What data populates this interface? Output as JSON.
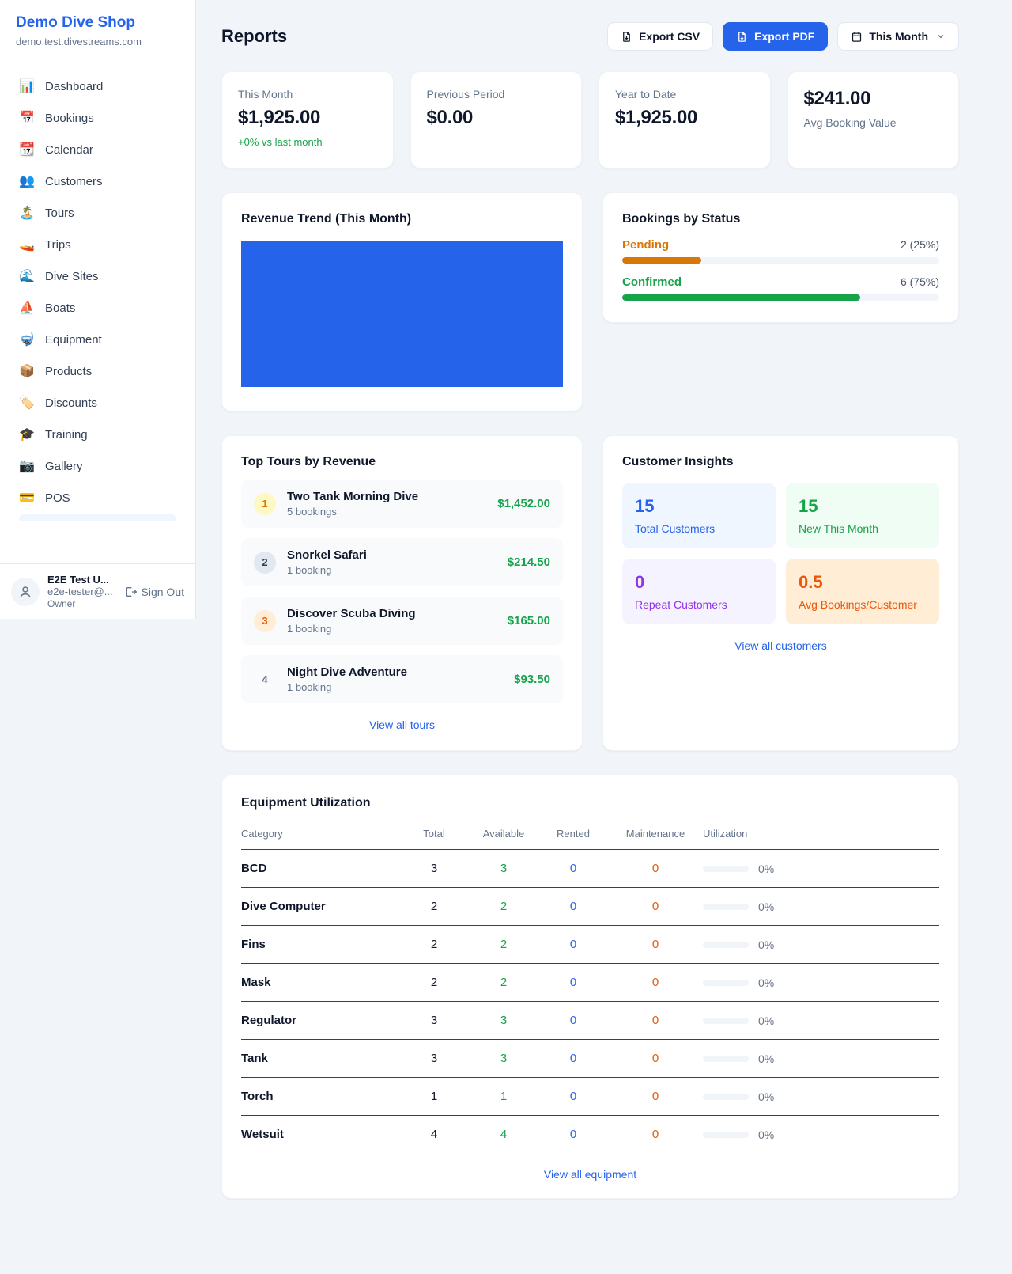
{
  "sidebar": {
    "shop_name": "Demo Dive Shop",
    "shop_domain": "demo.test.divestreams.com",
    "items": [
      {
        "icon": "📊",
        "label": "Dashboard"
      },
      {
        "icon": "📅",
        "label": "Bookings"
      },
      {
        "icon": "📆",
        "label": "Calendar"
      },
      {
        "icon": "👥",
        "label": "Customers"
      },
      {
        "icon": "🏝️",
        "label": "Tours"
      },
      {
        "icon": "🚤",
        "label": "Trips"
      },
      {
        "icon": "🌊",
        "label": "Dive Sites"
      },
      {
        "icon": "⛵",
        "label": "Boats"
      },
      {
        "icon": "🤿",
        "label": "Equipment"
      },
      {
        "icon": "📦",
        "label": "Products"
      },
      {
        "icon": "🏷️",
        "label": "Discounts"
      },
      {
        "icon": "🎓",
        "label": "Training"
      },
      {
        "icon": "📷",
        "label": "Gallery"
      },
      {
        "icon": "💳",
        "label": "POS"
      }
    ],
    "user": {
      "name": "E2E Test U...",
      "email": "e2e-tester@...",
      "role": "Owner",
      "sign_out": "Sign Out"
    }
  },
  "header": {
    "title": "Reports",
    "export_csv": "Export CSV",
    "export_pdf": "Export PDF",
    "period": "This Month"
  },
  "stats": [
    {
      "label": "This Month",
      "value": "$1,925.00",
      "delta": "+0% vs last month"
    },
    {
      "label": "Previous Period",
      "value": "$0.00"
    },
    {
      "label": "Year to Date",
      "value": "$1,925.00"
    },
    {
      "label": "Avg Booking Value",
      "value": "$241.00"
    }
  ],
  "revenue_trend": {
    "title": "Revenue Trend (This Month)",
    "bar_color": "#2563eb"
  },
  "chart_data": [
    {
      "type": "bar",
      "title": "Revenue Trend (This Month)",
      "categories": [
        "This Month"
      ],
      "values": [
        1925.0
      ],
      "note": "single full-width solid blue bar filling entire plot area",
      "bar_color": "#2563eb"
    },
    {
      "type": "bar",
      "title": "Bookings by Status",
      "categories": [
        "Pending",
        "Confirmed"
      ],
      "values": [
        2,
        6
      ],
      "percentages": [
        25,
        75
      ],
      "colors": [
        "#d97706",
        "#16a34a"
      ]
    }
  ],
  "bookings_by_status": {
    "title": "Bookings by Status",
    "rows": [
      {
        "label": "Pending",
        "count_text": "2 (25%)",
        "pct": 25,
        "color": "#d97706"
      },
      {
        "label": "Confirmed",
        "count_text": "6 (75%)",
        "pct": 75,
        "color": "#16a34a"
      }
    ]
  },
  "top_tours": {
    "title": "Top Tours by Revenue",
    "items": [
      {
        "rank": "1",
        "name": "Two Tank Morning Dive",
        "bookings": "5 bookings",
        "revenue": "$1,452.00"
      },
      {
        "rank": "2",
        "name": "Snorkel Safari",
        "bookings": "1 booking",
        "revenue": "$214.50"
      },
      {
        "rank": "3",
        "name": "Discover Scuba Diving",
        "bookings": "1 booking",
        "revenue": "$165.00"
      },
      {
        "rank": "4",
        "name": "Night Dive Adventure",
        "bookings": "1 booking",
        "revenue": "$93.50"
      }
    ],
    "view_all": "View all tours"
  },
  "customer_insights": {
    "title": "Customer Insights",
    "tiles": [
      {
        "value": "15",
        "label": "Total Customers"
      },
      {
        "value": "15",
        "label": "New This Month"
      },
      {
        "value": "0",
        "label": "Repeat Customers"
      },
      {
        "value": "0.5",
        "label": "Avg Bookings/Customer"
      }
    ],
    "view_all": "View all customers"
  },
  "equipment": {
    "title": "Equipment Utilization",
    "columns": [
      "Category",
      "Total",
      "Available",
      "Rented",
      "Maintenance",
      "Utilization"
    ],
    "rows": [
      {
        "category": "BCD",
        "total": "3",
        "available": "3",
        "rented": "0",
        "maintenance": "0",
        "utilization": "0%",
        "utilization_pct": 0
      },
      {
        "category": "Dive Computer",
        "total": "2",
        "available": "2",
        "rented": "0",
        "maintenance": "0",
        "utilization": "0%",
        "utilization_pct": 0
      },
      {
        "category": "Fins",
        "total": "2",
        "available": "2",
        "rented": "0",
        "maintenance": "0",
        "utilization": "0%",
        "utilization_pct": 0
      },
      {
        "category": "Mask",
        "total": "2",
        "available": "2",
        "rented": "0",
        "maintenance": "0",
        "utilization": "0%",
        "utilization_pct": 0
      },
      {
        "category": "Regulator",
        "total": "3",
        "available": "3",
        "rented": "0",
        "maintenance": "0",
        "utilization": "0%",
        "utilization_pct": 0
      },
      {
        "category": "Tank",
        "total": "3",
        "available": "3",
        "rented": "0",
        "maintenance": "0",
        "utilization": "0%",
        "utilization_pct": 0
      },
      {
        "category": "Torch",
        "total": "1",
        "available": "1",
        "rented": "0",
        "maintenance": "0",
        "utilization": "0%",
        "utilization_pct": 0
      },
      {
        "category": "Wetsuit",
        "total": "4",
        "available": "4",
        "rented": "0",
        "maintenance": "0",
        "utilization": "0%",
        "utilization_pct": 0
      }
    ],
    "view_all": "View all equipment"
  },
  "colors": {
    "accent_blue": "#2563eb",
    "success_green": "#16a34a",
    "pending_orange": "#d97706",
    "maintenance_orange": "#ea580c"
  }
}
